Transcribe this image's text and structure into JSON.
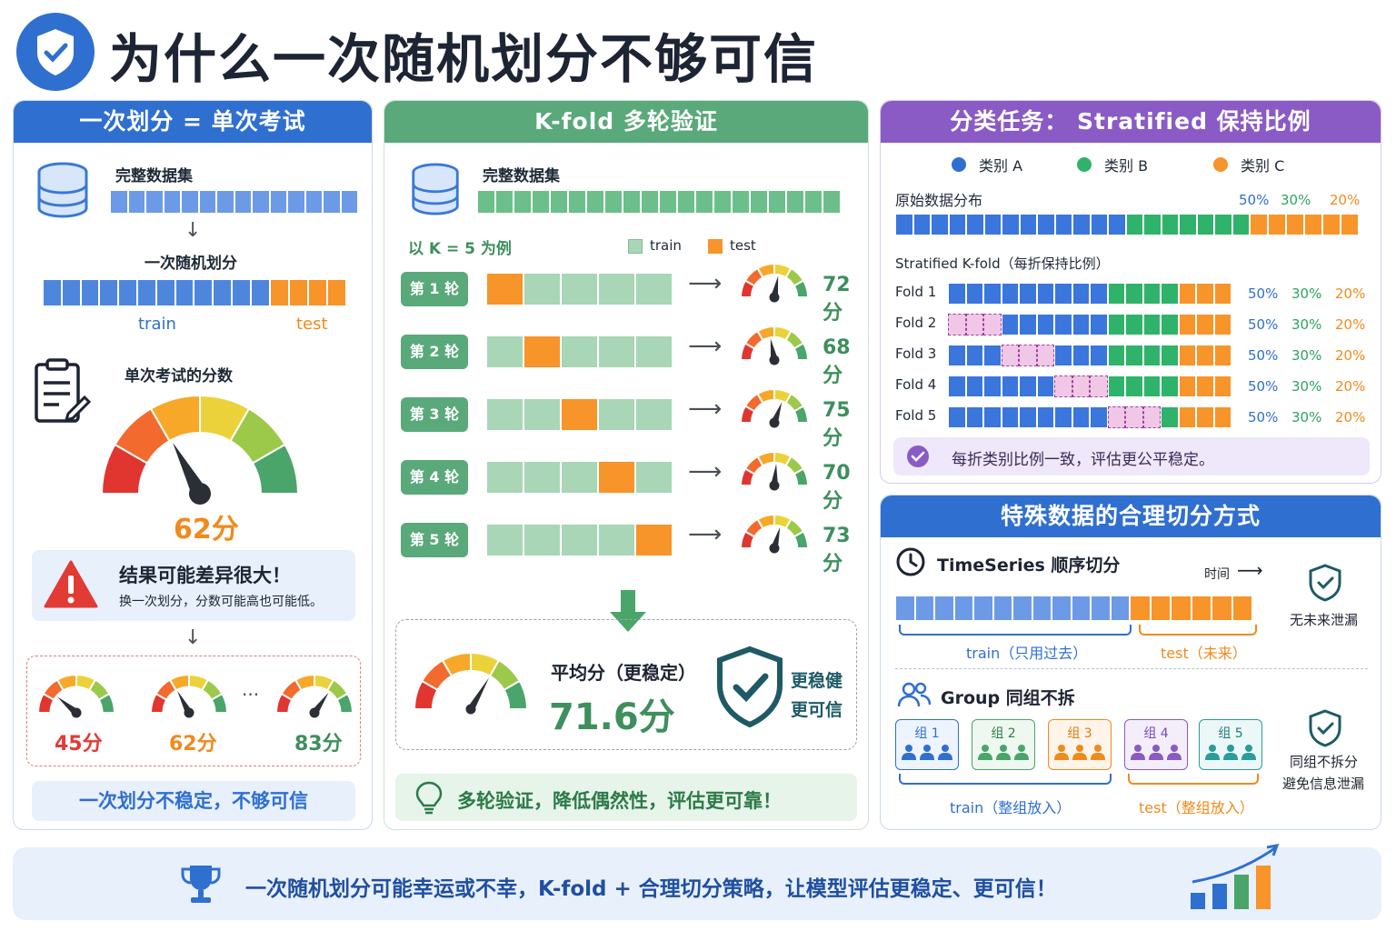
{
  "title": "为什么一次随机划分不够可信",
  "panel1": {
    "header": "一次划分 = 单次考试",
    "dataset_label": "完整数据集",
    "split_label": "一次随机划分",
    "train_label": "train",
    "test_label": "test",
    "score_title": "单次考试的分数",
    "score": "62分",
    "warn_title": "结果可能差异很大！",
    "warn_sub": "换一次划分，分数可能高也可能低。",
    "scores": [
      "45分",
      "62分",
      "83分"
    ],
    "ellipsis": "···",
    "bottom": "一次划分不稳定，不够可信"
  },
  "panel2": {
    "header": "K-fold 多轮验证",
    "dataset_label": "完整数据集",
    "k_label": "以 K = 5 为例",
    "legend_train": "train",
    "legend_test": "test",
    "rounds": [
      {
        "label": "第 1 轮",
        "test_index": 0,
        "score": "72分"
      },
      {
        "label": "第 2 轮",
        "test_index": 1,
        "score": "68分"
      },
      {
        "label": "第 3 轮",
        "test_index": 2,
        "score": "75分"
      },
      {
        "label": "第 4 轮",
        "test_index": 3,
        "score": "70分"
      },
      {
        "label": "第 5 轮",
        "test_index": 4,
        "score": "73分"
      }
    ],
    "avg_label": "平均分（更稳定）",
    "avg_score": "71.6分",
    "robust_1": "更稳健",
    "robust_2": "更可信",
    "bottom": "多轮验证，降低偶然性，评估更可靠！"
  },
  "panel3": {
    "header": "分类任务： Stratified 保持比例",
    "legend": [
      "类别 A",
      "类别 B",
      "类别 C"
    ],
    "orig_label": "原始数据分布",
    "ratios": [
      "50%",
      "30%",
      "20%"
    ],
    "strat_label": "Stratified K-fold（每折保持比例）",
    "folds": [
      "Fold 1",
      "Fold 2",
      "Fold 3",
      "Fold 4",
      "Fold 5"
    ],
    "note": "每折类别比例一致，评估更公平稳定。"
  },
  "panel4": {
    "header": "特殊数据的合理切分方式",
    "ts_title": "TimeSeries 顺序切分",
    "time_label": "时间",
    "ts_train": "train（只用过去）",
    "ts_test": "test（未来）",
    "ts_side": "无未来泄漏",
    "group_title": "Group 同组不拆",
    "groups": [
      "组 1",
      "组 2",
      "组 3",
      "组 4",
      "组 5"
    ],
    "g_train": "train（整组放入）",
    "g_test": "test（整组放入）",
    "g_side_1": "同组不拆分",
    "g_side_2": "避免信息泄漏"
  },
  "footer": "一次随机划分可能幸运或不幸，K-fold + 合理切分策略，让模型评估更稳定、更可信！",
  "colors": {
    "blue": "#2f6fd0",
    "green": "#5aa97a",
    "orange": "#f7942a",
    "purple": "#8a5bc4",
    "light_green": "#a8d6b6",
    "light_blue": "#5b8fe0"
  }
}
